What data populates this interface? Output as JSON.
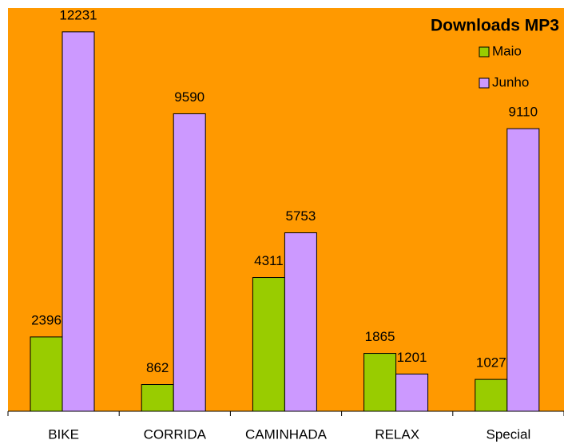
{
  "chart_data": {
    "type": "bar",
    "title": "Downloads MP3",
    "categories": [
      "BIKE",
      "CORRIDA",
      "CAMINHADA",
      "RELAX",
      "Special"
    ],
    "series": [
      {
        "name": "Maio",
        "color": "#99cc00",
        "values": [
          2396,
          862,
          4311,
          1865,
          1027
        ]
      },
      {
        "name": "Junho",
        "color": "#cc99ff",
        "values": [
          12231,
          9590,
          5753,
          1201,
          9110
        ]
      }
    ],
    "ylim": [
      0,
      13000
    ],
    "background": "#ff9900",
    "legend": "top-right"
  }
}
